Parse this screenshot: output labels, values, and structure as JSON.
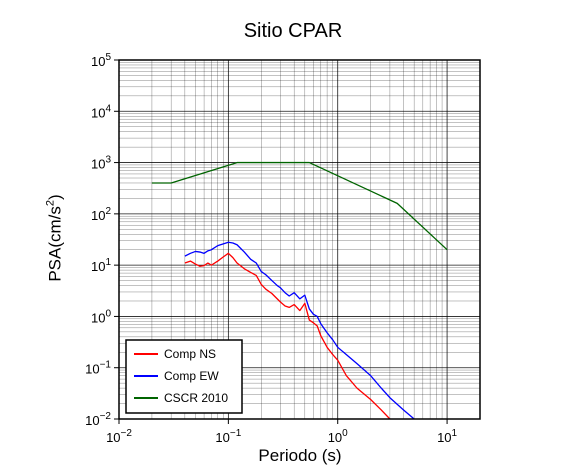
{
  "chart_data": {
    "type": "line",
    "title": "Sitio CPAR",
    "xlabel": "Periodo (s)",
    "ylabel": "PSA(cm/s2)",
    "xscale": "log",
    "yscale": "log",
    "xlim": [
      0.01,
      20
    ],
    "ylim": [
      0.01,
      100000
    ],
    "grid": true,
    "legend_position": "bottom-left",
    "x_ticks": [
      {
        "base": "10",
        "exp": "−2",
        "value": 0.01
      },
      {
        "base": "10",
        "exp": "−1",
        "value": 0.1
      },
      {
        "base": "10",
        "exp": "0",
        "value": 1
      },
      {
        "base": "10",
        "exp": "1",
        "value": 10
      }
    ],
    "y_ticks": [
      {
        "base": "10",
        "exp": "−2",
        "value": 0.01
      },
      {
        "base": "10",
        "exp": "−1",
        "value": 0.1
      },
      {
        "base": "10",
        "exp": "0",
        "value": 1
      },
      {
        "base": "10",
        "exp": "1",
        "value": 10
      },
      {
        "base": "10",
        "exp": "2",
        "value": 100
      },
      {
        "base": "10",
        "exp": "3",
        "value": 1000
      },
      {
        "base": "10",
        "exp": "4",
        "value": 10000
      },
      {
        "base": "10",
        "exp": "5",
        "value": 100000
      }
    ],
    "series": [
      {
        "name": "Comp NS",
        "color": "#ff0000",
        "x": [
          0.04,
          0.045,
          0.05,
          0.055,
          0.06,
          0.065,
          0.07,
          0.08,
          0.09,
          0.1,
          0.11,
          0.12,
          0.14,
          0.16,
          0.18,
          0.2,
          0.22,
          0.25,
          0.28,
          0.3,
          0.33,
          0.36,
          0.4,
          0.45,
          0.5,
          0.55,
          0.6,
          0.65,
          0.7,
          0.8,
          0.9,
          1.0,
          1.2,
          1.5,
          2.0,
          2.5,
          3.0
        ],
        "y": [
          11,
          12,
          10.5,
          9.5,
          9.8,
          11,
          10,
          12,
          14.5,
          17,
          14,
          11,
          8.5,
          7.2,
          6.3,
          4.2,
          3.4,
          2.8,
          2.2,
          1.9,
          1.6,
          1.5,
          1.7,
          1.3,
          1.8,
          0.85,
          0.75,
          0.65,
          0.42,
          0.25,
          0.18,
          0.14,
          0.07,
          0.04,
          0.024,
          0.015,
          0.01
        ]
      },
      {
        "name": "Comp EW",
        "color": "#0000ff",
        "x": [
          0.04,
          0.045,
          0.05,
          0.055,
          0.06,
          0.065,
          0.07,
          0.08,
          0.09,
          0.1,
          0.11,
          0.12,
          0.14,
          0.16,
          0.18,
          0.2,
          0.22,
          0.25,
          0.28,
          0.3,
          0.33,
          0.36,
          0.4,
          0.45,
          0.5,
          0.55,
          0.6,
          0.65,
          0.7,
          0.8,
          0.9,
          1.0,
          1.2,
          1.5,
          2.0,
          2.5,
          3.0,
          4.0,
          5.0
        ],
        "y": [
          15,
          17,
          18.5,
          18,
          17,
          19,
          20,
          24,
          26,
          28,
          27,
          25,
          18,
          13,
          11,
          7.5,
          6.5,
          5,
          4,
          3.6,
          2.9,
          2.5,
          2.9,
          2.2,
          2.6,
          1.4,
          1.1,
          1.0,
          0.72,
          0.48,
          0.35,
          0.25,
          0.18,
          0.12,
          0.07,
          0.04,
          0.026,
          0.015,
          0.01
        ]
      },
      {
        "name": "CSCR 2010",
        "color": "#006400",
        "x": [
          0.02,
          0.03,
          0.12,
          0.55,
          3.5,
          10
        ],
        "y": [
          400,
          400,
          1000,
          1000,
          160,
          20
        ]
      }
    ]
  }
}
